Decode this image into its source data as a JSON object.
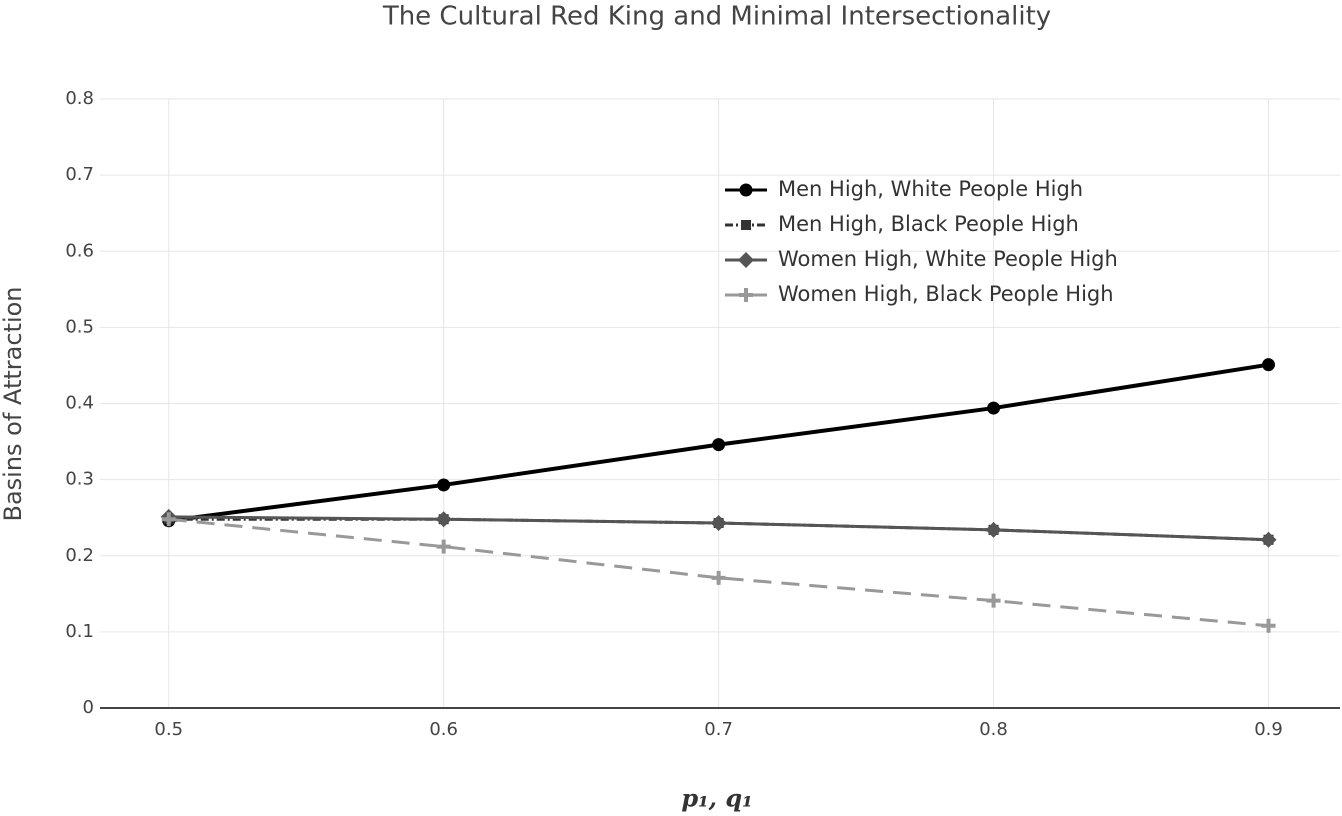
{
  "chart_data": {
    "type": "line",
    "title": "The Cultural Red King and Minimal Intersectionality",
    "x_label": "p₁, q₁",
    "y_label": "Basins of Attraction",
    "x": [
      0.5,
      0.6,
      0.7,
      0.8,
      0.9
    ],
    "xlim": [
      0.475,
      0.926
    ],
    "xticks": [
      0.5,
      0.6,
      0.7,
      0.8,
      0.9
    ],
    "ylim": [
      0,
      0.8
    ],
    "yticks": [
      0,
      0.1,
      0.2,
      0.3,
      0.4,
      0.5,
      0.6,
      0.7,
      0.8
    ],
    "grid": true,
    "legend": "upper right",
    "series": [
      {
        "name": "Men High, White People High",
        "color": "#000000",
        "dash": "solid",
        "marker": "circle",
        "values": [
          0.246,
          0.293,
          0.346,
          0.394,
          0.451
        ]
      },
      {
        "name": "Men High, Black People High",
        "color": "#333333",
        "dash": "dashdot",
        "marker": "square",
        "values": [
          0.248,
          0.248,
          0.243,
          0.234,
          0.221
        ]
      },
      {
        "name": "Women High, White People High",
        "color": "#555555",
        "dash": "solid",
        "marker": "diamond",
        "values": [
          0.251,
          0.248,
          0.243,
          0.234,
          0.221
        ]
      },
      {
        "name": "Women High, Black People High",
        "color": "#999999",
        "dash": "dash",
        "marker": "cross",
        "values": [
          0.248,
          0.212,
          0.171,
          0.141,
          0.108
        ]
      }
    ]
  }
}
